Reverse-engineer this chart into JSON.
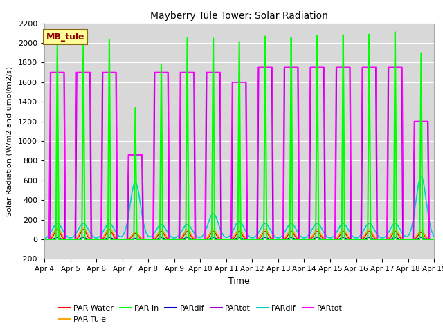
{
  "title": "Mayberry Tule Tower: Solar Radiation",
  "ylabel": "Solar Radiation (W/m2 and umol/m2/s)",
  "xlabel": "Time",
  "ylim": [
    -200,
    2200
  ],
  "background_color": "#d8d8d8",
  "legend_box_label": "MB_tule",
  "legend_box_color": "#ffff99",
  "legend_box_border": "#8B6914",
  "xtick_labels": [
    "Apr 4",
    "Apr 5",
    "Apr 6",
    "Apr 7",
    "Apr 8",
    "Apr 9",
    "Apr 10",
    "Apr 11",
    "Apr 12",
    "Apr 13",
    "Apr 14",
    "Apr 15",
    "Apr 16",
    "Apr 17",
    "Apr 18",
    "Apr 19"
  ],
  "num_days": 15,
  "day_peaks_green": [
    2050,
    2050,
    2050,
    1350,
    1800,
    2080,
    2080,
    2050,
    2100,
    2080,
    2100,
    2100,
    2100,
    2120,
    1900
  ],
  "day_peaks_magenta": [
    1700,
    1700,
    1700,
    860,
    1700,
    1700,
    1700,
    1600,
    1750,
    1750,
    1750,
    1750,
    1750,
    1750,
    1200
  ],
  "day_peaks_purple": [
    1700,
    1700,
    1700,
    860,
    1700,
    1700,
    1700,
    1600,
    1750,
    1750,
    1750,
    1750,
    1750,
    1750,
    1200
  ],
  "day_peaks_orange": [
    120,
    120,
    120,
    70,
    100,
    100,
    100,
    100,
    100,
    100,
    100,
    100,
    100,
    100,
    90
  ],
  "day_peaks_red": [
    100,
    100,
    100,
    60,
    80,
    80,
    80,
    80,
    80,
    80,
    80,
    80,
    80,
    80,
    70
  ],
  "day_peaks_cyan": [
    160,
    160,
    160,
    580,
    150,
    150,
    260,
    180,
    160,
    160,
    160,
    160,
    160,
    160,
    640
  ],
  "day_peaks_blue": [
    20,
    20,
    20,
    10,
    20,
    20,
    20,
    20,
    20,
    20,
    20,
    20,
    20,
    20,
    20
  ],
  "legend_entries": [
    {
      "color": "#ff0000",
      "label": "PAR Water"
    },
    {
      "color": "#ffa500",
      "label": "PAR Tule"
    },
    {
      "color": "#00ff00",
      "label": "PAR In"
    },
    {
      "color": "#0000cc",
      "label": "PARdif"
    },
    {
      "color": "#9900cc",
      "label": "PARtot"
    },
    {
      "color": "#00cccc",
      "label": "PARdif"
    },
    {
      "color": "#ff00ff",
      "label": "PARtot"
    }
  ]
}
